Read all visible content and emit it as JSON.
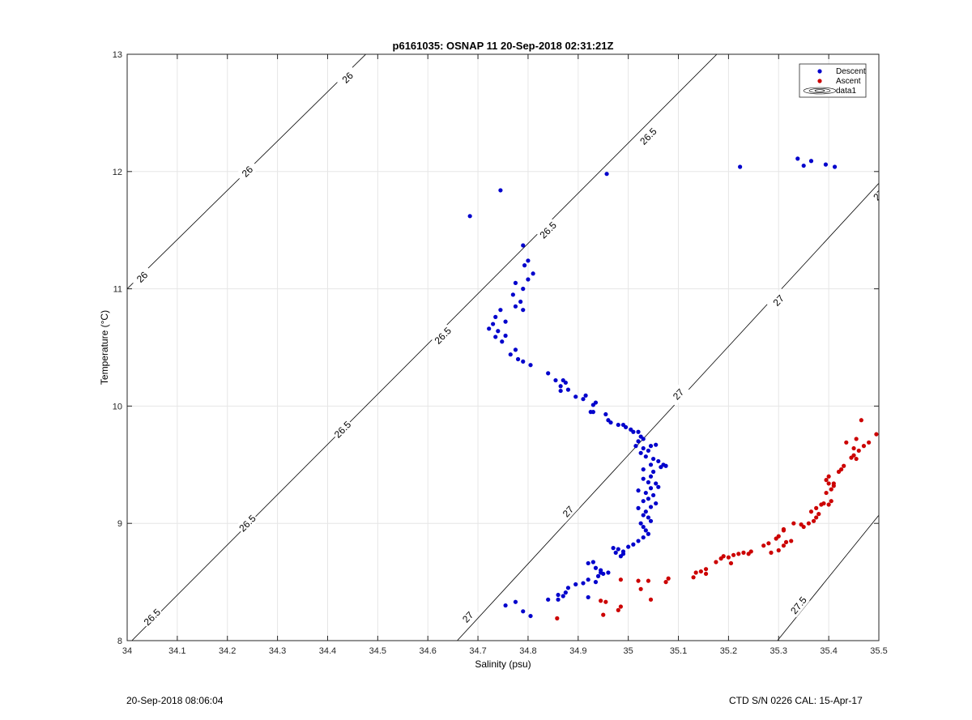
{
  "footer": {
    "left": "20-Sep-2018 08:06:04",
    "right": "CTD S/N 0226  CAL: 15-Apr-17"
  },
  "chart_data": {
    "type": "scatter",
    "title": "p6161035: OSNAP 11 20-Sep-2018 02:31:21Z",
    "xlabel": "Salinity (psu)",
    "ylabel": "Temperature (°C)",
    "xlim": [
      34,
      35.5
    ],
    "ylim": [
      8,
      13
    ],
    "x_ticks": [
      "34",
      "34.1",
      "34.2",
      "34.3",
      "34.4",
      "34.5",
      "34.6",
      "34.7",
      "34.8",
      "34.9",
      "35",
      "35.1",
      "35.2",
      "35.3",
      "35.4",
      "35.5"
    ],
    "y_ticks": [
      "8",
      "9",
      "10",
      "11",
      "12",
      "13"
    ],
    "grid": true,
    "legend_position": "top-right",
    "legend": [
      "Descent",
      "Ascent",
      "data1"
    ],
    "colors": {
      "descent": "#0000cc",
      "ascent": "#cc0000",
      "contour": "#000000",
      "grid": "#e6e6e6"
    },
    "contours": [
      {
        "level": "26",
        "points": [
          [
            34.0,
            11.0
          ],
          [
            34.5,
            13.1
          ]
        ],
        "labels": [
          [
            34.03,
            11.1
          ],
          [
            34.24,
            12.0
          ],
          [
            34.44,
            12.8
          ]
        ]
      },
      {
        "level": "26.5",
        "points": [
          [
            34.0,
            7.96
          ],
          [
            35.2,
            13.1
          ]
        ],
        "labels": [
          [
            34.05,
            8.2
          ],
          [
            34.24,
            9.0
          ],
          [
            34.43,
            9.8
          ],
          [
            34.63,
            10.6
          ],
          [
            34.84,
            11.5
          ],
          [
            35.04,
            12.3
          ]
        ]
      },
      {
        "level": "27",
        "points": [
          [
            34.65,
            7.96
          ],
          [
            35.5,
            11.9
          ]
        ],
        "labels": [
          [
            34.68,
            8.2
          ],
          [
            34.88,
            9.1
          ],
          [
            35.1,
            10.1
          ],
          [
            35.3,
            10.9
          ],
          [
            35.5,
            11.8
          ]
        ]
      },
      {
        "level": "27.5",
        "points": [
          [
            35.29,
            7.96
          ],
          [
            35.5,
            9.07
          ]
        ],
        "labels": [
          [
            35.34,
            8.3
          ]
        ]
      }
    ],
    "series": [
      {
        "name": "Descent",
        "points": [
          [
            34.684,
            11.62
          ],
          [
            34.745,
            11.84
          ],
          [
            34.957,
            11.98
          ],
          [
            35.223,
            12.04
          ],
          [
            35.338,
            12.11
          ],
          [
            35.35,
            12.05
          ],
          [
            35.365,
            12.09
          ],
          [
            35.394,
            12.06
          ],
          [
            35.412,
            12.04
          ],
          [
            34.79,
            11.37
          ],
          [
            34.8,
            11.24
          ],
          [
            34.81,
            11.13
          ],
          [
            34.8,
            11.08
          ],
          [
            34.793,
            11.2
          ],
          [
            34.775,
            11.05
          ],
          [
            34.79,
            11.0
          ],
          [
            34.77,
            10.95
          ],
          [
            34.785,
            10.89
          ],
          [
            34.79,
            10.82
          ],
          [
            34.775,
            10.85
          ],
          [
            34.745,
            10.82
          ],
          [
            34.735,
            10.76
          ],
          [
            34.755,
            10.72
          ],
          [
            34.73,
            10.7
          ],
          [
            34.722,
            10.66
          ],
          [
            34.74,
            10.64
          ],
          [
            34.735,
            10.59
          ],
          [
            34.755,
            10.6
          ],
          [
            34.748,
            10.55
          ],
          [
            34.765,
            10.44
          ],
          [
            34.775,
            10.48
          ],
          [
            34.79,
            10.38
          ],
          [
            34.805,
            10.35
          ],
          [
            34.78,
            10.4
          ],
          [
            34.84,
            10.28
          ],
          [
            34.855,
            10.22
          ],
          [
            34.865,
            10.17
          ],
          [
            34.87,
            10.22
          ],
          [
            34.875,
            10.2
          ],
          [
            34.88,
            10.14
          ],
          [
            34.865,
            10.13
          ],
          [
            34.895,
            10.08
          ],
          [
            34.915,
            10.09
          ],
          [
            34.91,
            10.06
          ],
          [
            34.93,
            10.01
          ],
          [
            34.935,
            10.03
          ],
          [
            34.925,
            9.95
          ],
          [
            34.93,
            9.95
          ],
          [
            34.955,
            9.93
          ],
          [
            34.96,
            9.88
          ],
          [
            34.965,
            9.86
          ],
          [
            34.98,
            9.84
          ],
          [
            34.99,
            9.84
          ],
          [
            34.995,
            9.82
          ],
          [
            35.005,
            9.8
          ],
          [
            35.01,
            9.78
          ],
          [
            35.02,
            9.78
          ],
          [
            35.025,
            9.74
          ],
          [
            35.02,
            9.7
          ],
          [
            35.03,
            9.72
          ],
          [
            35.015,
            9.66
          ],
          [
            35.03,
            9.64
          ],
          [
            35.045,
            9.66
          ],
          [
            35.055,
            9.67
          ],
          [
            35.04,
            9.62
          ],
          [
            35.025,
            9.6
          ],
          [
            35.035,
            9.57
          ],
          [
            35.05,
            9.55
          ],
          [
            35.06,
            9.53
          ],
          [
            35.045,
            9.5
          ],
          [
            35.07,
            9.5
          ],
          [
            35.065,
            9.48
          ],
          [
            35.075,
            9.49
          ],
          [
            35.03,
            9.46
          ],
          [
            35.05,
            9.44
          ],
          [
            35.045,
            9.4
          ],
          [
            35.03,
            9.38
          ],
          [
            35.04,
            9.35
          ],
          [
            35.055,
            9.34
          ],
          [
            35.06,
            9.31
          ],
          [
            35.045,
            9.3
          ],
          [
            35.02,
            9.28
          ],
          [
            35.035,
            9.26
          ],
          [
            35.05,
            9.24
          ],
          [
            35.04,
            9.21
          ],
          [
            35.03,
            9.19
          ],
          [
            35.055,
            9.17
          ],
          [
            35.045,
            9.14
          ],
          [
            35.02,
            9.13
          ],
          [
            35.035,
            9.1
          ],
          [
            35.03,
            9.07
          ],
          [
            35.04,
            9.05
          ],
          [
            35.045,
            9.02
          ],
          [
            35.025,
            9.0
          ],
          [
            35.03,
            8.97
          ],
          [
            35.035,
            8.94
          ],
          [
            35.04,
            8.91
          ],
          [
            35.03,
            8.88
          ],
          [
            35.02,
            8.85
          ],
          [
            35.01,
            8.82
          ],
          [
            35.0,
            8.8
          ],
          [
            34.99,
            8.76
          ],
          [
            34.98,
            8.78
          ],
          [
            34.985,
            8.72
          ],
          [
            34.975,
            8.75
          ],
          [
            34.97,
            8.79
          ],
          [
            34.99,
            8.74
          ],
          [
            34.93,
            8.67
          ],
          [
            34.935,
            8.62
          ],
          [
            34.945,
            8.6
          ],
          [
            34.95,
            8.57
          ],
          [
            34.94,
            8.55
          ],
          [
            34.935,
            8.5
          ],
          [
            34.92,
            8.52
          ],
          [
            34.91,
            8.49
          ],
          [
            34.895,
            8.48
          ],
          [
            34.88,
            8.45
          ],
          [
            34.875,
            8.41
          ],
          [
            34.87,
            8.38
          ],
          [
            34.86,
            8.35
          ],
          [
            34.84,
            8.35
          ],
          [
            34.92,
            8.37
          ],
          [
            34.775,
            8.33
          ],
          [
            34.755,
            8.3
          ],
          [
            34.79,
            8.25
          ],
          [
            34.805,
            8.21
          ],
          [
            34.86,
            8.39
          ],
          [
            34.945,
            8.58
          ],
          [
            34.92,
            8.66
          ],
          [
            34.96,
            8.58
          ]
        ]
      },
      {
        "name": "Ascent",
        "points": [
          [
            34.858,
            8.19
          ],
          [
            34.95,
            8.22
          ],
          [
            34.945,
            8.34
          ],
          [
            34.955,
            8.33
          ],
          [
            34.98,
            8.26
          ],
          [
            34.985,
            8.29
          ],
          [
            34.985,
            8.52
          ],
          [
            35.02,
            8.51
          ],
          [
            35.04,
            8.51
          ],
          [
            35.025,
            8.44
          ],
          [
            35.045,
            8.35
          ],
          [
            35.075,
            8.5
          ],
          [
            35.08,
            8.53
          ],
          [
            35.13,
            8.54
          ],
          [
            35.135,
            8.58
          ],
          [
            35.145,
            8.59
          ],
          [
            35.155,
            8.61
          ],
          [
            35.155,
            8.57
          ],
          [
            35.175,
            8.67
          ],
          [
            35.185,
            8.7
          ],
          [
            35.19,
            8.72
          ],
          [
            35.2,
            8.71
          ],
          [
            35.205,
            8.66
          ],
          [
            35.21,
            8.73
          ],
          [
            35.22,
            8.74
          ],
          [
            35.23,
            8.75
          ],
          [
            35.24,
            8.74
          ],
          [
            35.245,
            8.76
          ],
          [
            35.27,
            8.81
          ],
          [
            35.28,
            8.83
          ],
          [
            35.285,
            8.75
          ],
          [
            35.295,
            8.87
          ],
          [
            35.3,
            8.89
          ],
          [
            35.3,
            8.77
          ],
          [
            35.31,
            8.81
          ],
          [
            35.315,
            8.84
          ],
          [
            35.325,
            8.85
          ],
          [
            35.31,
            8.94
          ],
          [
            35.31,
            8.95
          ],
          [
            35.33,
            9.0
          ],
          [
            35.345,
            8.99
          ],
          [
            35.35,
            8.97
          ],
          [
            35.36,
            9.0
          ],
          [
            35.37,
            9.02
          ],
          [
            35.375,
            9.05
          ],
          [
            35.38,
            9.08
          ],
          [
            35.365,
            9.1
          ],
          [
            35.375,
            9.13
          ],
          [
            35.385,
            9.16
          ],
          [
            35.39,
            9.17
          ],
          [
            35.4,
            9.16
          ],
          [
            35.405,
            9.19
          ],
          [
            35.395,
            9.26
          ],
          [
            35.405,
            9.29
          ],
          [
            35.41,
            9.32
          ],
          [
            35.4,
            9.34
          ],
          [
            35.395,
            9.37
          ],
          [
            35.41,
            9.34
          ],
          [
            35.4,
            9.4
          ],
          [
            35.42,
            9.44
          ],
          [
            35.425,
            9.46
          ],
          [
            35.43,
            9.49
          ],
          [
            35.445,
            9.56
          ],
          [
            35.45,
            9.58
          ],
          [
            35.455,
            9.55
          ],
          [
            35.46,
            9.62
          ],
          [
            35.45,
            9.64
          ],
          [
            35.47,
            9.66
          ],
          [
            35.435,
            9.69
          ],
          [
            35.455,
            9.72
          ],
          [
            35.48,
            9.69
          ],
          [
            35.495,
            9.76
          ],
          [
            35.465,
            9.88
          ]
        ]
      }
    ]
  }
}
